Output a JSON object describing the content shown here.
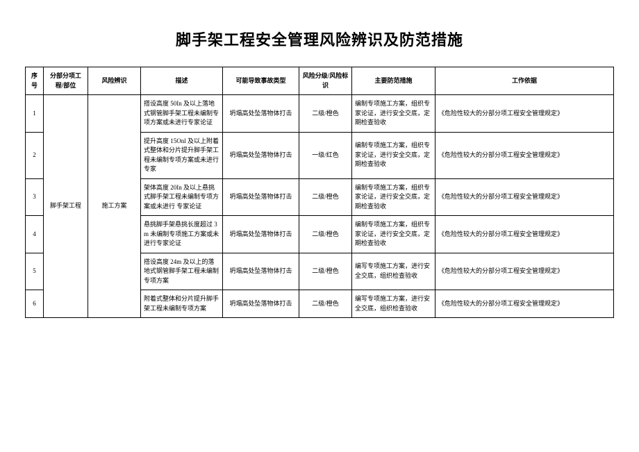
{
  "title": "脚手架工程安全管理风险辨识及防范措施",
  "columns": {
    "seq": "序号",
    "part": "分部分项工程/部位",
    "risk": "风险辨识",
    "desc": "描述",
    "acc": "可能导致事故类型",
    "level": "风险分级/风险标识",
    "measure": "主要防范措施",
    "basis": "工作依据"
  },
  "merged": {
    "part": "脚手架工程",
    "risk": "施工方案"
  },
  "rows": [
    {
      "seq": "1",
      "desc": "搭设高度 50In 及以上落地式钢管脚手架工程未编制专项方案或未进行专家论证",
      "acc": "坍塌高处坠落物体打击",
      "level": "二级/橙色",
      "measure": "编制专项施工方案，组织专家论证，进行安全交底，定期检查验收",
      "basis": "《危险性较大的分部分项工程安全管理规定》"
    },
    {
      "seq": "2",
      "desc": "提升高度 15Onl 及以上附着式整体和分片提升脚手架工程未编制专项方案或未进行专家",
      "acc": "坍塌高处坠落物体打击",
      "level": "一级/红色",
      "measure": "编制专项施工方案，组织专家论证，进行安全交底，定期检查验收",
      "basis": "《危险性较大的分部分项工程安全管理规定》"
    },
    {
      "seq": "3",
      "desc": "架体高度 20In 及以上悬挑式脚手架工程未编制专项方案或未进行\n专家论证",
      "acc": "坍塌高处坠落物体打击",
      "level": "二级/橙色",
      "measure": "编制专项施工方案，组织专家论证，进行安全交底，定期检查验收",
      "basis": "《危险性较大的分部分项工程安全管理规定》"
    },
    {
      "seq": "4",
      "desc": "悬挑脚手架悬挑长度超过 3m 未编制专项施工方案或未进行专家论证",
      "acc": "坍塌高处坠落物体打击",
      "level": "二级/橙色",
      "measure": "编制专项施工方案，组织专家论证，进行安全交底，定期检查验收",
      "basis": "《危险性较大的分部分项工程安全管理规定》"
    },
    {
      "seq": "5",
      "desc": "搭设高度 24m 及以上的落地式钢管脚手架工程未编制专项方案",
      "acc": "坍塌高处坠落物体打击",
      "level": "二级/橙色",
      "measure": "编写专项施工方案，进行安全交底，组织检查验收",
      "basis": "《危险性较大的分部分项工程安全管理规定》"
    },
    {
      "seq": "6",
      "desc": "附着式整体和分片提升脚手架工程未编制专项方案",
      "acc": "坍塌高处坠落物体打击",
      "level": "二级/橙色",
      "measure": "编写专项施工方案，进行安全交底，组织检查验收",
      "basis": "《危险性较大的分部分项工程安全管理规定》"
    }
  ]
}
